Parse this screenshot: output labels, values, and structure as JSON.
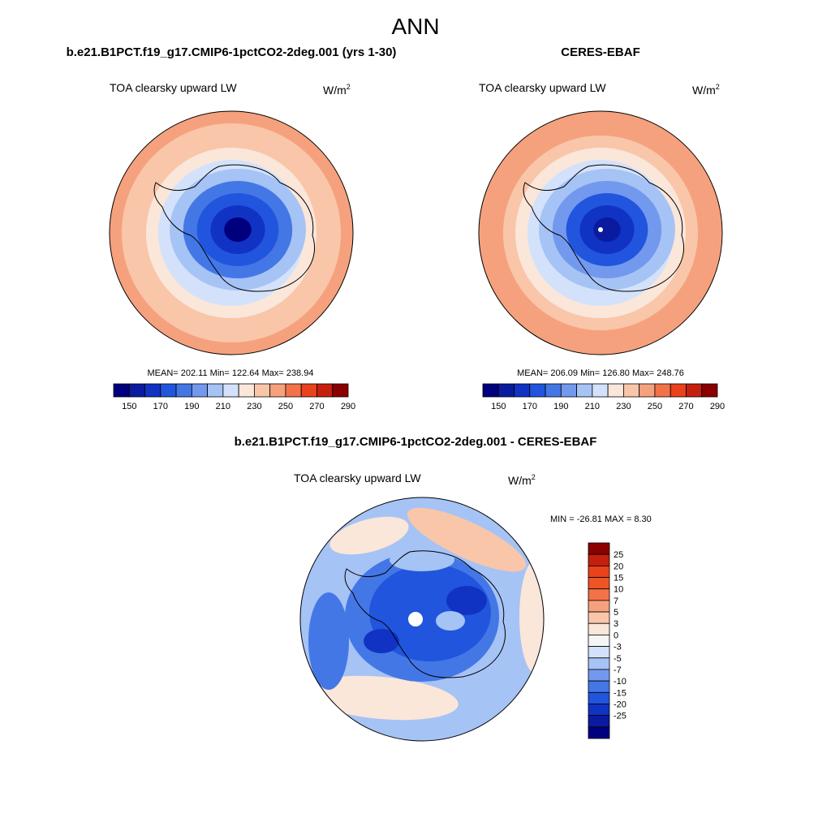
{
  "figure": {
    "title": "ANN",
    "panels": [
      {
        "id": "model",
        "case_title": "b.e21.B1PCT.f19_g17.CMIP6-1pctCO2-2deg.001 (yrs 1-30)",
        "variable": "TOA clearsky upward LW",
        "units_base": "W/m",
        "units_exp": "2",
        "stats": "MEAN= 202.11  Min= 122.64  Max= 238.94",
        "field": {
          "polar_mean": 148,
          "ring_levels": [
            148,
            160,
            172,
            188,
            200,
            210,
            222,
            230,
            238,
            240
          ]
        },
        "colorbar": {
          "colors": [
            "#00007f",
            "#0a1ba0",
            "#1133c4",
            "#2255dd",
            "#4477e6",
            "#7399ee",
            "#a6c3f5",
            "#d3e2fa",
            "#fbe6da",
            "#f9c6aa",
            "#f6a17d",
            "#f47248",
            "#e9421c",
            "#c5200f",
            "#8b0000"
          ],
          "labels": [
            "150",
            "170",
            "190",
            "210",
            "230",
            "250",
            "270",
            "290"
          ]
        }
      },
      {
        "id": "obs",
        "case_title": "CERES-EBAF",
        "variable": "TOA clearsky upward LW",
        "units_base": "W/m",
        "units_exp": "2",
        "stats": "MEAN= 206.09  Min= 126.80  Max= 248.76",
        "field": {
          "polar_mean": 150,
          "ring_levels": [
            150,
            162,
            176,
            192,
            205,
            214,
            226,
            236,
            244,
            248
          ]
        },
        "colorbar": {
          "colors": [
            "#00007f",
            "#0a1ba0",
            "#1133c4",
            "#2255dd",
            "#4477e6",
            "#7399ee",
            "#a6c3f5",
            "#d3e2fa",
            "#fbe6da",
            "#f9c6aa",
            "#f6a17d",
            "#f47248",
            "#e9421c",
            "#c5200f",
            "#8b0000"
          ],
          "labels": [
            "150",
            "170",
            "190",
            "210",
            "230",
            "250",
            "270",
            "290"
          ]
        }
      },
      {
        "id": "diff",
        "case_title": "b.e21.B1PCT.f19_g17.CMIP6-1pctCO2-2deg.001 - CERES-EBAF",
        "variable": "TOA clearsky upward LW",
        "units_base": "W/m",
        "units_exp": "2",
        "stats": "MIN = -26.81 MAX =   8.30",
        "colorbar": {
          "colors": [
            "#00007f",
            "#0a1ba0",
            "#1133c4",
            "#2255dd",
            "#4477e6",
            "#7399ee",
            "#a6c3f5",
            "#d3e2fa",
            "#f5f5f5",
            "#fbe6da",
            "#f9c6aa",
            "#f6a17d",
            "#f47248",
            "#ee5526",
            "#e9421c",
            "#c5200f",
            "#8b0000"
          ],
          "labels": [
            "25",
            "20",
            "15",
            "10",
            "7",
            "5",
            "3",
            "0",
            "-3",
            "-5",
            "-7",
            "-10",
            "-15",
            "-20",
            "-25"
          ]
        }
      }
    ]
  }
}
